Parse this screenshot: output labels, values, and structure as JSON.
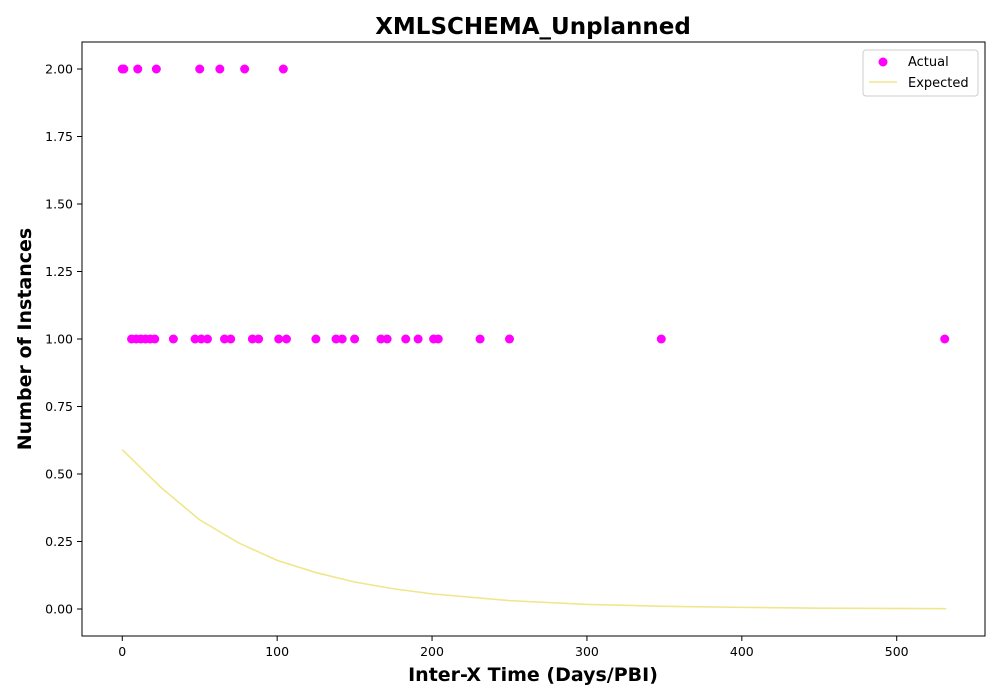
{
  "chart_data": {
    "type": "scatter",
    "title": "XMLSCHEMA_Unplanned",
    "xlabel": "Inter-X Time (Days/PBI)",
    "ylabel": "Number of Instances",
    "xlim": [
      -26,
      557
    ],
    "ylim": [
      -0.1,
      2.1
    ],
    "x_ticks": [
      0,
      100,
      200,
      300,
      400,
      500
    ],
    "x_tick_labels": [
      "0",
      "100",
      "200",
      "300",
      "400",
      "500"
    ],
    "y_ticks": [
      0,
      0.25,
      0.5,
      0.75,
      1.0,
      1.25,
      1.5,
      1.75,
      2.0
    ],
    "y_tick_labels": [
      "0.00",
      "0.25",
      "0.50",
      "0.75",
      "1.00",
      "1.25",
      "1.50",
      "1.75",
      "2.00"
    ],
    "grid": false,
    "legend_position": "top-right",
    "series": [
      {
        "name": "Actual",
        "kind": "scatter",
        "color": "#ff00ff",
        "points": [
          {
            "x": 0,
            "y": 2
          },
          {
            "x": 1,
            "y": 2
          },
          {
            "x": 10,
            "y": 2
          },
          {
            "x": 22,
            "y": 2
          },
          {
            "x": 50,
            "y": 2
          },
          {
            "x": 63,
            "y": 2
          },
          {
            "x": 79,
            "y": 2
          },
          {
            "x": 104,
            "y": 2
          },
          {
            "x": 6,
            "y": 1
          },
          {
            "x": 9,
            "y": 1
          },
          {
            "x": 12,
            "y": 1
          },
          {
            "x": 15,
            "y": 1
          },
          {
            "x": 18,
            "y": 1
          },
          {
            "x": 21,
            "y": 1
          },
          {
            "x": 33,
            "y": 1
          },
          {
            "x": 47,
            "y": 1
          },
          {
            "x": 51,
            "y": 1
          },
          {
            "x": 55,
            "y": 1
          },
          {
            "x": 66,
            "y": 1
          },
          {
            "x": 70,
            "y": 1
          },
          {
            "x": 84,
            "y": 1
          },
          {
            "x": 88,
            "y": 1
          },
          {
            "x": 101,
            "y": 1
          },
          {
            "x": 106,
            "y": 1
          },
          {
            "x": 125,
            "y": 1
          },
          {
            "x": 138,
            "y": 1
          },
          {
            "x": 142,
            "y": 1
          },
          {
            "x": 150,
            "y": 1
          },
          {
            "x": 167,
            "y": 1
          },
          {
            "x": 171,
            "y": 1
          },
          {
            "x": 183,
            "y": 1
          },
          {
            "x": 191,
            "y": 1
          },
          {
            "x": 201,
            "y": 1
          },
          {
            "x": 204,
            "y": 1
          },
          {
            "x": 231,
            "y": 1
          },
          {
            "x": 250,
            "y": 1
          },
          {
            "x": 348,
            "y": 1
          },
          {
            "x": 531,
            "y": 1
          }
        ]
      },
      {
        "name": "Expected",
        "kind": "line",
        "color": "#f0e68c",
        "points": [
          {
            "x": 0,
            "y": 0.59
          },
          {
            "x": 25,
            "y": 0.45
          },
          {
            "x": 50,
            "y": 0.33
          },
          {
            "x": 75,
            "y": 0.245
          },
          {
            "x": 100,
            "y": 0.18
          },
          {
            "x": 125,
            "y": 0.135
          },
          {
            "x": 150,
            "y": 0.1
          },
          {
            "x": 175,
            "y": 0.075
          },
          {
            "x": 200,
            "y": 0.056
          },
          {
            "x": 250,
            "y": 0.031
          },
          {
            "x": 300,
            "y": 0.017
          },
          {
            "x": 350,
            "y": 0.01
          },
          {
            "x": 400,
            "y": 0.006
          },
          {
            "x": 450,
            "y": 0.003
          },
          {
            "x": 500,
            "y": 0.002
          },
          {
            "x": 532,
            "y": 0.001
          }
        ]
      }
    ]
  }
}
